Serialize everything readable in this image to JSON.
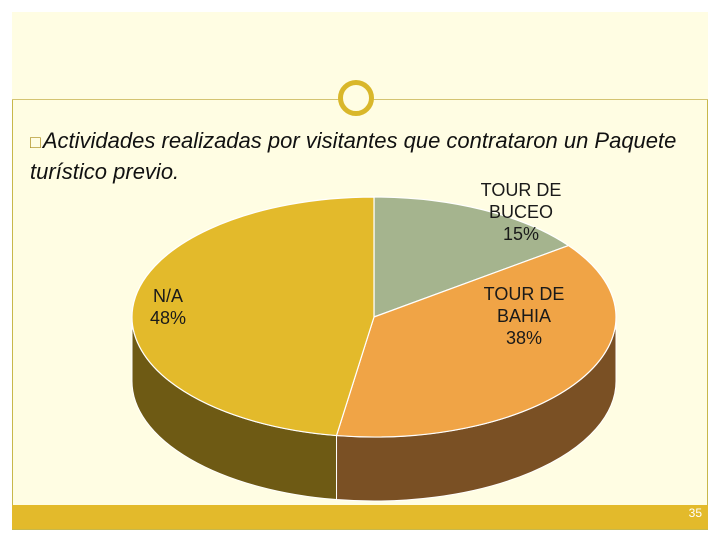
{
  "slide": {
    "title_bullet": "□",
    "title": "Actividades realizadas por visitantes que contrataron un Paquete turístico previo.",
    "page_number": "35"
  },
  "chart_data": {
    "type": "pie",
    "title": "Actividades realizadas por visitantes que contrataron un Paquete turístico previo.",
    "slices": [
      {
        "name": "TOUR DE BUCEO",
        "label_lines": [
          "TOUR DE",
          "BUCEO"
        ],
        "percent_label": "15%",
        "value": 15,
        "color": "#a5b48e",
        "side_color": "#6f7a58"
      },
      {
        "name": "TOUR DE BAHIA",
        "label_lines": [
          "TOUR DE",
          "BAHIA"
        ],
        "percent_label": "38%",
        "value": 38,
        "color": "#f0a446",
        "side_color": "#7a5024"
      },
      {
        "name": "N/A",
        "label_lines": [
          "N/A"
        ],
        "percent_label": "48%",
        "value": 48,
        "color": "#e3ba2b",
        "side_color": "#6e5a14"
      }
    ]
  }
}
